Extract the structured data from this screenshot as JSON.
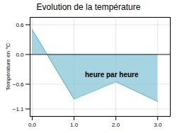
{
  "chart_data": {
    "type": "area",
    "title": "Evolution de la température",
    "ylabel": "Température en °C",
    "x": [
      0,
      1,
      2,
      3
    ],
    "values": [
      0.5,
      -0.9,
      -0.55,
      -0.95
    ],
    "color": "#6bb8cc",
    "xlim": [
      -0.05,
      3.3
    ],
    "ylim": [
      -1.25,
      0.75
    ],
    "xticks": [
      0,
      1,
      2,
      3
    ],
    "yticks": [
      -1.1,
      -0.6,
      0.0,
      0.6
    ],
    "grid": true,
    "annotations": [
      {
        "text": "heure par heure",
        "x": 1.9,
        "y": -0.35
      }
    ]
  }
}
